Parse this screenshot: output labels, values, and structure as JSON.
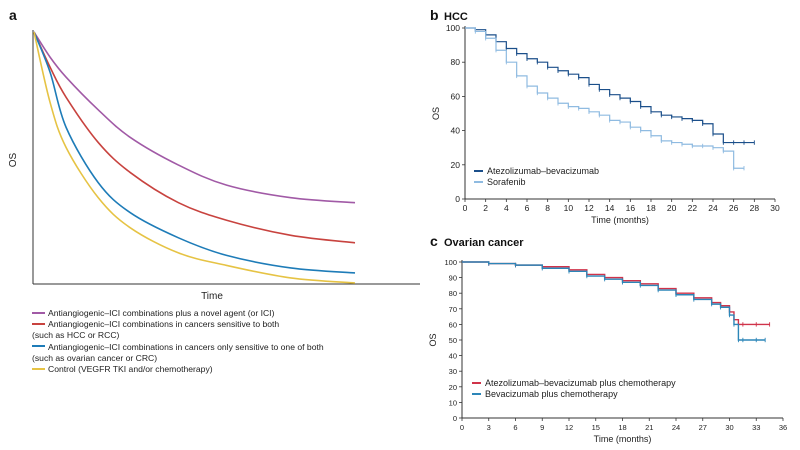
{
  "colors": {
    "purple": "#a15aa6",
    "red": "#c8433f",
    "blue": "#1e7cb8",
    "yellow": "#e6c344",
    "hcc_dark": "#1b4f8a",
    "hcc_light": "#8fbbe1",
    "ov_red": "#d0334a",
    "ov_blue": "#2c86b8",
    "axis": "#333333"
  },
  "panel_a": {
    "label": "a",
    "ylabel": "OS",
    "xlabel": "Time",
    "legend": [
      {
        "lines": [
          "Antiangiogenic–ICI combinations plus a novel agent (or ICI)"
        ],
        "color": "#a15aa6"
      },
      {
        "lines": [
          "Antiangiogenic–ICI combinations in cancers sensitive to both",
          "(such as HCC or RCC)"
        ],
        "color": "#c8433f"
      },
      {
        "lines": [
          "Antiangiogenic–ICI combinations in cancers only sensitive to one of both",
          "(such as ovarian cancer or CRC)"
        ],
        "color": "#1e7cb8"
      },
      {
        "lines": [
          "Control (VEGFR TKI and/or chemotherapy)"
        ],
        "color": "#e6c344"
      }
    ]
  },
  "panel_b": {
    "label": "b",
    "title": "HCC"
  },
  "panel_c": {
    "label": "c",
    "title": "Ovarian cancer"
  },
  "chart_data": [
    {
      "type": "line",
      "title": "",
      "xlabel": "Time",
      "ylabel": "OS",
      "axis_ticks": false,
      "x": [
        0,
        0.05,
        0.1,
        0.2,
        0.3,
        0.45,
        0.6,
        0.8,
        1.0
      ],
      "series": [
        {
          "name": "Antiangiogenic–ICI combinations plus a novel agent (or ICI)",
          "color": "#a15aa6",
          "values": [
            1.0,
            0.9,
            0.82,
            0.69,
            0.58,
            0.47,
            0.39,
            0.34,
            0.32
          ]
        },
        {
          "name": "Antiangiogenic–ICI combinations in cancers sensitive to both (such as HCC or RCC)",
          "color": "#c8433f",
          "values": [
            1.0,
            0.86,
            0.74,
            0.56,
            0.44,
            0.32,
            0.25,
            0.19,
            0.16
          ]
        },
        {
          "name": "Antiangiogenic–ICI combinations in cancers only sensitive to one of both (such as ovarian cancer or CRC)",
          "color": "#1e7cb8",
          "values": [
            1.0,
            0.84,
            0.62,
            0.4,
            0.28,
            0.18,
            0.11,
            0.06,
            0.04
          ]
        },
        {
          "name": "Control (VEGFR TKI and/or chemotherapy)",
          "color": "#e6c344",
          "values": [
            1.0,
            0.72,
            0.54,
            0.34,
            0.22,
            0.12,
            0.07,
            0.02,
            0.0
          ]
        }
      ],
      "ylim": [
        0,
        1
      ]
    },
    {
      "type": "line",
      "title": "HCC",
      "xlabel": "Time (months)",
      "ylabel": "OS",
      "xlim": [
        0,
        30
      ],
      "ylim": [
        0,
        100
      ],
      "xticks": [
        0,
        2,
        4,
        6,
        8,
        10,
        12,
        14,
        16,
        18,
        20,
        22,
        24,
        26,
        28,
        30
      ],
      "yticks": [
        0,
        20,
        40,
        60,
        80,
        100
      ],
      "legend_position": "bottom-left",
      "series": [
        {
          "name": "Atezolizumab–bevacizumab",
          "color": "#1b4f8a",
          "x": [
            0,
            1,
            2,
            3,
            4,
            5,
            6,
            7,
            8,
            9,
            10,
            11,
            12,
            13,
            14,
            15,
            16,
            17,
            18,
            19,
            20,
            21,
            22,
            23,
            24,
            25,
            26,
            27,
            28
          ],
          "values": [
            100,
            99,
            96,
            92,
            88,
            85,
            82,
            80,
            77,
            75,
            73,
            71,
            67,
            64,
            61,
            59,
            57,
            54,
            51,
            49,
            48,
            47,
            46,
            44,
            38,
            33,
            33,
            33,
            33
          ]
        },
        {
          "name": "Sorafenib",
          "color": "#8fbbe1",
          "x": [
            0,
            1,
            2,
            3,
            4,
            5,
            6,
            7,
            8,
            9,
            10,
            11,
            12,
            13,
            14,
            15,
            16,
            17,
            18,
            19,
            20,
            21,
            22,
            23,
            24,
            25,
            26,
            27
          ],
          "values": [
            100,
            98,
            94,
            87,
            80,
            72,
            66,
            62,
            59,
            56,
            54,
            53,
            51,
            49,
            46,
            45,
            42,
            40,
            37,
            34,
            33,
            32,
            31,
            31,
            30,
            28,
            18,
            18
          ]
        }
      ]
    },
    {
      "type": "line",
      "title": "Ovarian cancer",
      "xlabel": "Time (months)",
      "ylabel": "OS",
      "xlim": [
        0,
        36
      ],
      "ylim": [
        0,
        100
      ],
      "xticks": [
        0,
        3,
        6,
        9,
        12,
        15,
        18,
        21,
        24,
        27,
        30,
        33,
        36
      ],
      "yticks": [
        0,
        10,
        20,
        30,
        40,
        50,
        60,
        70,
        80,
        90,
        100
      ],
      "legend_position": "bottom-left",
      "series": [
        {
          "name": "Atezolizumab–bevacizumab plus chemotherapy",
          "color": "#d0334a",
          "x": [
            0,
            3,
            6,
            9,
            12,
            14,
            16,
            18,
            20,
            22,
            24,
            26,
            28,
            29,
            30,
            30.5,
            31,
            31.5,
            33,
            34.5
          ],
          "values": [
            100,
            99,
            98,
            97,
            95,
            92,
            90,
            88,
            86,
            83,
            80,
            77,
            74,
            72,
            68,
            63,
            60,
            60,
            60,
            60
          ]
        },
        {
          "name": "Bevacizumab plus chemotherapy",
          "color": "#2c86b8",
          "x": [
            0,
            3,
            6,
            9,
            12,
            14,
            16,
            18,
            20,
            22,
            24,
            26,
            28,
            29,
            30,
            30.5,
            31,
            31.5,
            33,
            34
          ],
          "values": [
            100,
            99,
            98,
            96,
            94,
            91,
            89,
            87,
            85,
            82,
            79,
            76,
            73,
            71,
            66,
            60,
            50,
            50,
            50,
            50
          ]
        }
      ]
    }
  ]
}
